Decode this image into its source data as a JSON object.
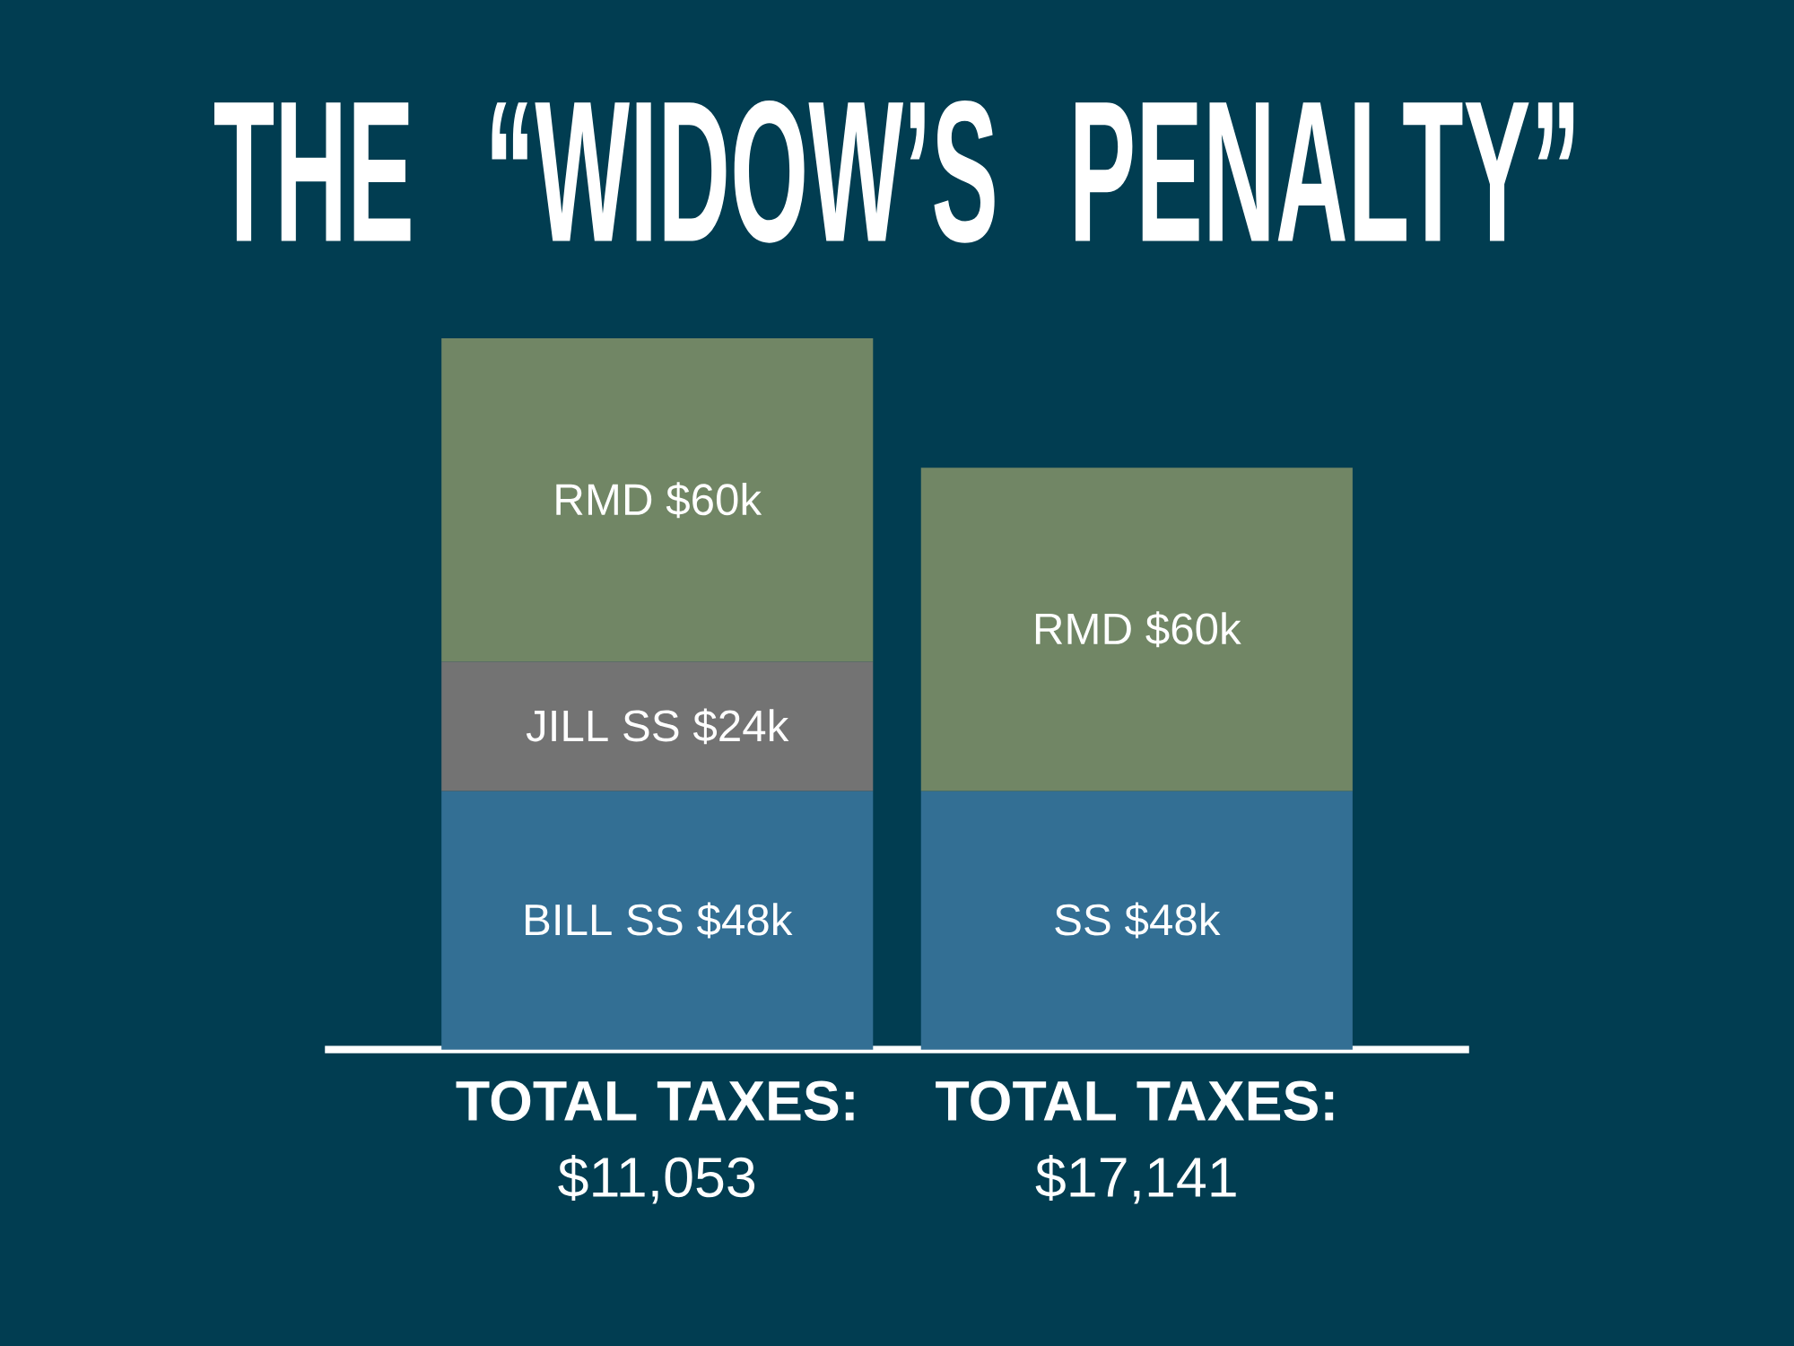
{
  "chart_data": {
    "type": "bar",
    "stacked": true,
    "title": "THE “WIDOW’S PENALTY”",
    "categories": [
      "**TOTAL TAXES:** $11,053",
      "**TOTAL TAXES:** $17,141"
    ],
    "tick_labels": "x",
    "series": [
      {
        "color": "#336f94",
        "values": [
          48000,
          48000
        ],
        "value_labels": [
          "BILL SS $48k",
          "SS $48k"
        ]
      },
      {
        "color": "#737373",
        "values": [
          24000,
          null
        ],
        "value_labels": [
          "JILL SS $24k",
          null
        ]
      },
      {
        "color": "#718665",
        "values": [
          60000,
          60000
        ],
        "value_labels": [
          "RMD $60k",
          "RMD $60k"
        ]
      }
    ]
  }
}
